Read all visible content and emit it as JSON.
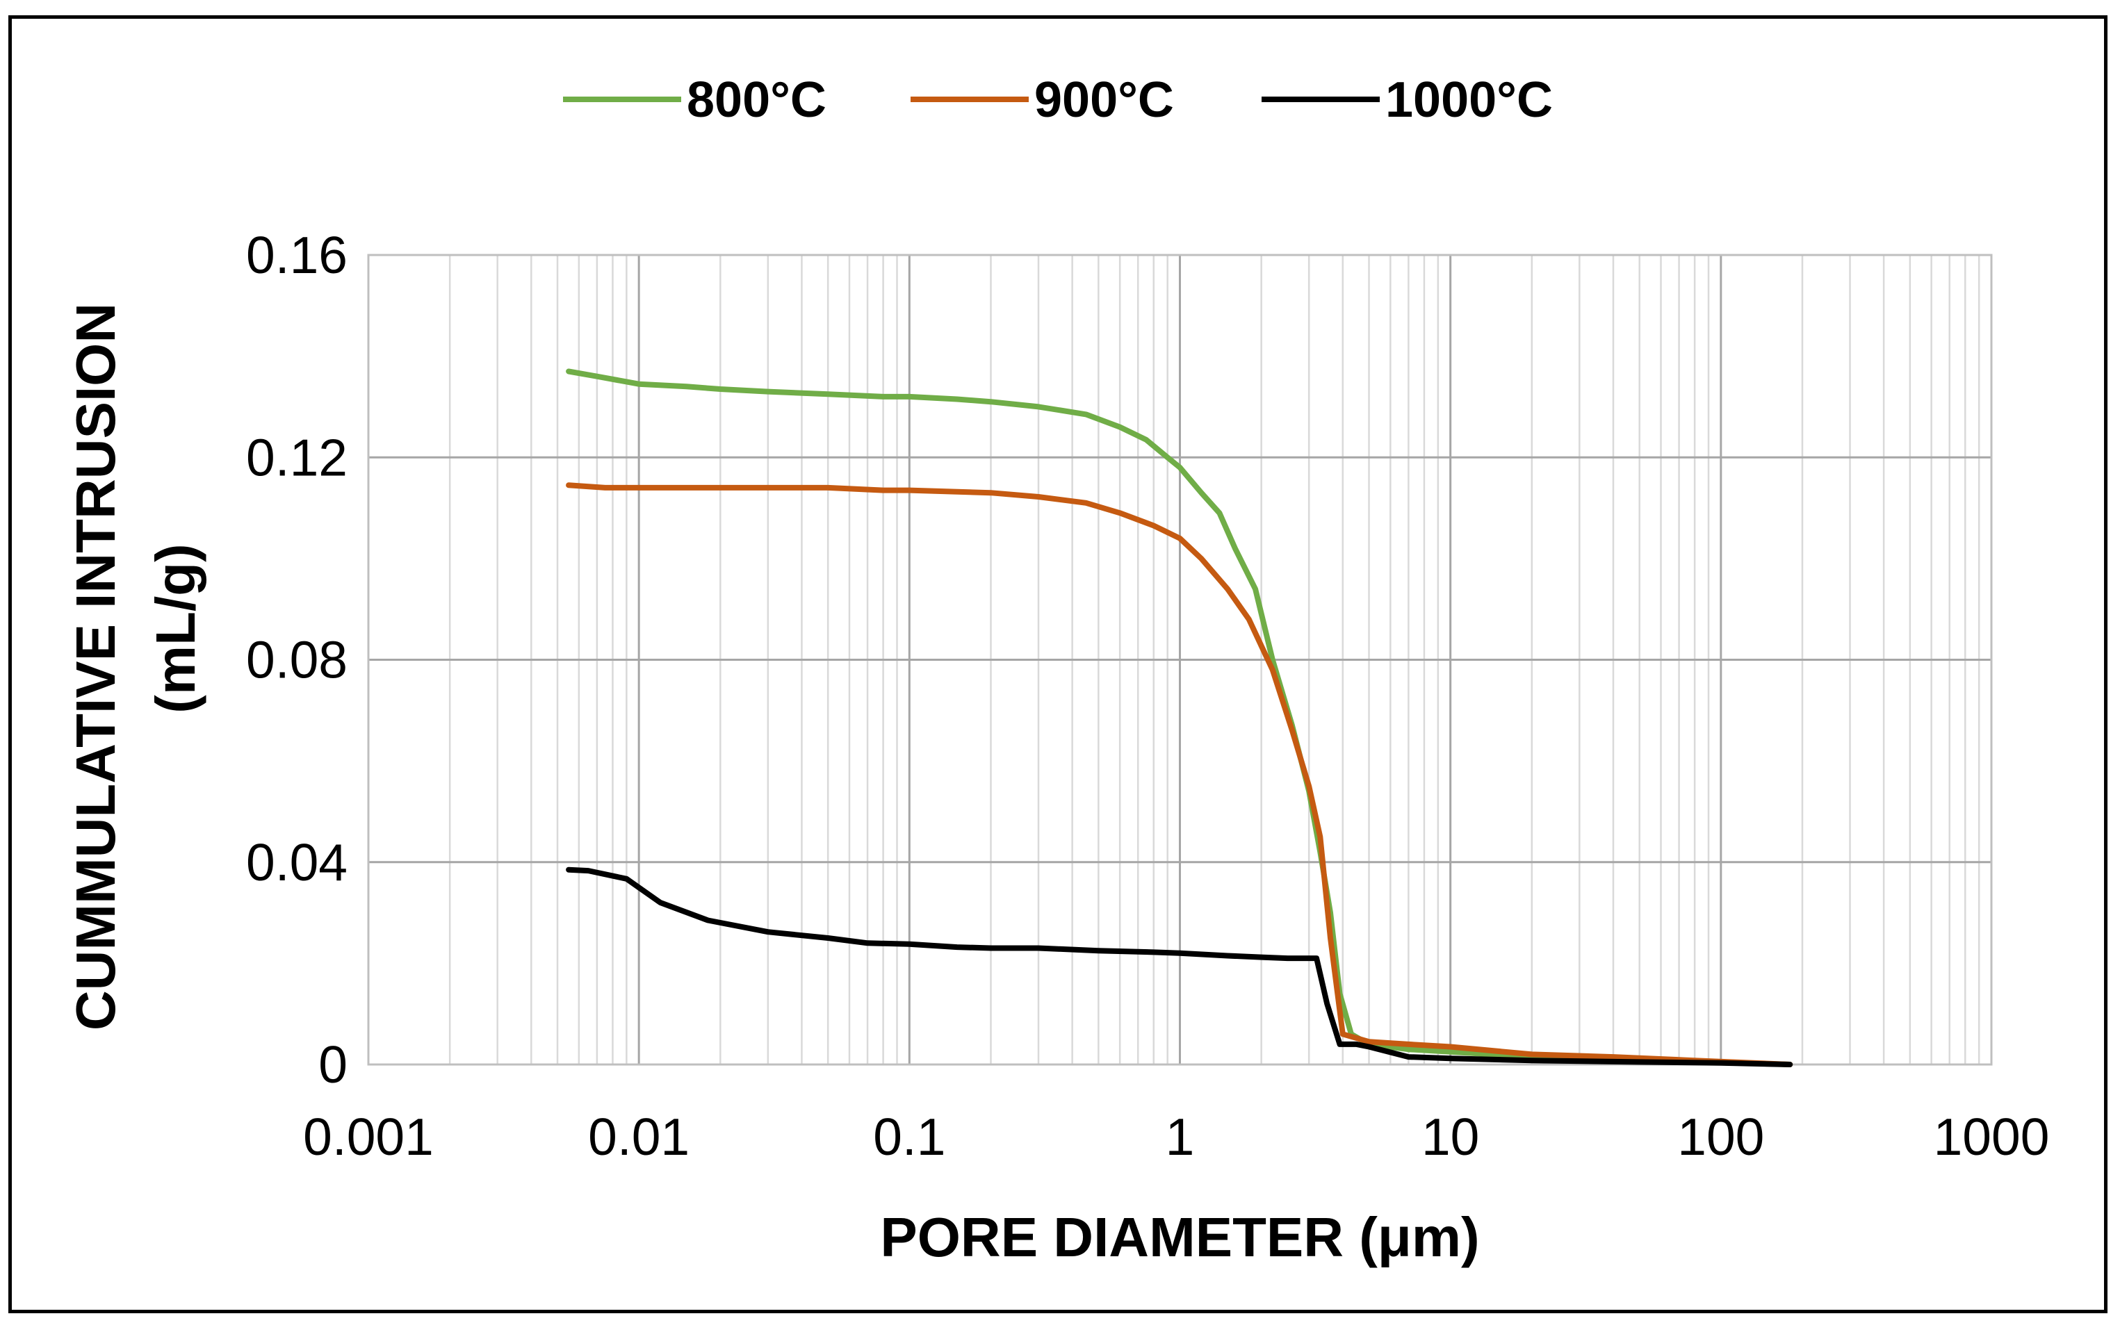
{
  "chart_data": {
    "type": "line",
    "title": "",
    "xlabel": "PORE DIAMETER (μm)",
    "ylabel": "CUMMULATIVE INTRUSION (mL/g)",
    "ylabel_line1": "CUMMULATIVE INTRUSION",
    "ylabel_line2": "(mL/g)",
    "x_scale": "log",
    "xlim": [
      0.001,
      1000
    ],
    "ylim": [
      0,
      0.16
    ],
    "x_ticks": [
      0.001,
      0.01,
      0.1,
      1,
      10,
      100,
      1000
    ],
    "x_tick_labels": [
      "0.001",
      "0.01",
      "0.1",
      "1",
      "10",
      "100",
      "1000"
    ],
    "y_ticks": [
      0,
      0.04,
      0.08,
      0.12,
      0.16
    ],
    "y_tick_labels": [
      "0",
      "0.04",
      "0.08",
      "0.12",
      "0.16"
    ],
    "grid": true,
    "legend_position": "top",
    "series": [
      {
        "name": "800°C",
        "color": "#70AD47",
        "x": [
          0.0055,
          0.007,
          0.01,
          0.015,
          0.02,
          0.03,
          0.05,
          0.08,
          0.1,
          0.15,
          0.2,
          0.3,
          0.45,
          0.6,
          0.75,
          0.9,
          1.0,
          1.2,
          1.4,
          1.6,
          1.9,
          2.2,
          2.6,
          3.0,
          3.3,
          3.6,
          3.9,
          4.3,
          5.0,
          7.0,
          10.0,
          20.0,
          40.0,
          80.0,
          120.0,
          180.0
        ],
        "y": [
          0.137,
          0.136,
          0.1345,
          0.134,
          0.1335,
          0.133,
          0.1325,
          0.132,
          0.132,
          0.1315,
          0.131,
          0.13,
          0.1285,
          0.126,
          0.1235,
          0.12,
          0.118,
          0.113,
          0.109,
          0.102,
          0.094,
          0.08,
          0.067,
          0.054,
          0.042,
          0.03,
          0.014,
          0.006,
          0.004,
          0.003,
          0.0025,
          0.0015,
          0.001,
          0.0005,
          0.0003,
          0.0
        ]
      },
      {
        "name": "900°C",
        "color": "#C55A11",
        "x": [
          0.0055,
          0.0075,
          0.01,
          0.02,
          0.05,
          0.08,
          0.1,
          0.2,
          0.3,
          0.45,
          0.6,
          0.8,
          1.0,
          1.2,
          1.5,
          1.8,
          2.2,
          2.6,
          3.0,
          3.3,
          3.6,
          4.0,
          5.0,
          7.0,
          10.0,
          20.0,
          40.0,
          80.0,
          180.0
        ],
        "y": [
          0.1145,
          0.114,
          0.114,
          0.114,
          0.114,
          0.1135,
          0.1135,
          0.113,
          0.1122,
          0.111,
          0.109,
          0.1065,
          0.104,
          0.1,
          0.094,
          0.088,
          0.078,
          0.066,
          0.055,
          0.045,
          0.025,
          0.006,
          0.0045,
          0.004,
          0.0035,
          0.002,
          0.0015,
          0.0008,
          0.0
        ]
      },
      {
        "name": "1000°C",
        "color": "#000000",
        "x": [
          0.0055,
          0.0065,
          0.009,
          0.012,
          0.018,
          0.03,
          0.05,
          0.07,
          0.1,
          0.15,
          0.2,
          0.3,
          0.5,
          0.8,
          1.0,
          1.5,
          2.0,
          2.5,
          3.2,
          3.5,
          3.9,
          4.5,
          5.0,
          7.0,
          10.0,
          20.0,
          50.0,
          100.0,
          180.0
        ],
        "y": [
          0.0385,
          0.0383,
          0.0367,
          0.032,
          0.0285,
          0.0262,
          0.025,
          0.024,
          0.0238,
          0.0232,
          0.023,
          0.023,
          0.0225,
          0.0222,
          0.022,
          0.0215,
          0.0212,
          0.021,
          0.021,
          0.012,
          0.004,
          0.004,
          0.0035,
          0.0015,
          0.0012,
          0.0008,
          0.0005,
          0.0003,
          0.0
        ]
      }
    ]
  }
}
